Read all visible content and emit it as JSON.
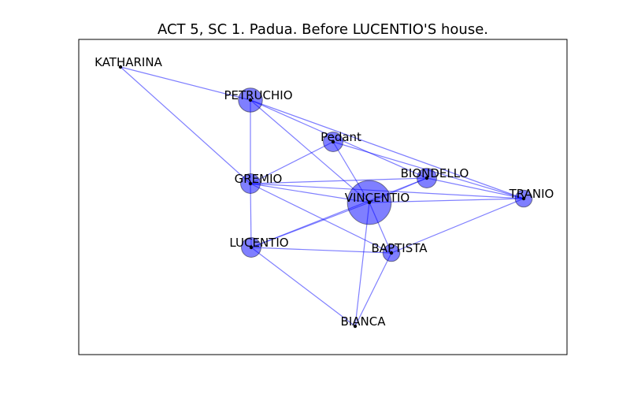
{
  "title": "ACT 5, SC 1. Padua. Before LUCENTIO'S house.",
  "colors": {
    "edge": "#0000ff",
    "node": "#0000ff",
    "frame": "#000000"
  },
  "nodes": [
    {
      "id": "KATHARINA",
      "label": "KATHARINA",
      "weight": 0
    },
    {
      "id": "PETRUCHIO",
      "label": "PETRUCHIO",
      "weight": 3
    },
    {
      "id": "Pedant",
      "label": "Pedant",
      "weight": 2
    },
    {
      "id": "BIONDELLO",
      "label": "BIONDELLO",
      "weight": 2
    },
    {
      "id": "GREMIO",
      "label": "GREMIO",
      "weight": 2
    },
    {
      "id": "VINCENTIO",
      "label": "VINCENTIO",
      "weight": 10
    },
    {
      "id": "TRANIO",
      "label": "TRANIO",
      "weight": 1.5
    },
    {
      "id": "LUCENTIO",
      "label": "LUCENTIO",
      "weight": 2
    },
    {
      "id": "BAPTISTA",
      "label": "BAPTISTA",
      "weight": 1.5
    },
    {
      "id": "BIANCA",
      "label": "BIANCA",
      "weight": 0
    }
  ],
  "edges": [
    [
      "KATHARINA",
      "PETRUCHIO"
    ],
    [
      "KATHARINA",
      "GREMIO"
    ],
    [
      "PETRUCHIO",
      "GREMIO"
    ],
    [
      "PETRUCHIO",
      "VINCENTIO"
    ],
    [
      "PETRUCHIO",
      "BIONDELLO"
    ],
    [
      "PETRUCHIO",
      "TRANIO"
    ],
    [
      "Pedant",
      "GREMIO"
    ],
    [
      "Pedant",
      "VINCENTIO"
    ],
    [
      "Pedant",
      "TRANIO"
    ],
    [
      "GREMIO",
      "BIONDELLO"
    ],
    [
      "GREMIO",
      "VINCENTIO"
    ],
    [
      "GREMIO",
      "LUCENTIO"
    ],
    [
      "GREMIO",
      "BAPTISTA"
    ],
    [
      "GREMIO",
      "TRANIO"
    ],
    [
      "BIONDELLO",
      "VINCENTIO"
    ],
    [
      "BIONDELLO",
      "LUCENTIO"
    ],
    [
      "BIONDELLO",
      "TRANIO"
    ],
    [
      "VINCENTIO",
      "TRANIO"
    ],
    [
      "VINCENTIO",
      "LUCENTIO"
    ],
    [
      "VINCENTIO",
      "BAPTISTA"
    ],
    [
      "VINCENTIO",
      "BIANCA"
    ],
    [
      "LUCENTIO",
      "BAPTISTA"
    ],
    [
      "LUCENTIO",
      "BIANCA"
    ],
    [
      "BAPTISTA",
      "TRANIO"
    ],
    [
      "BAPTISTA",
      "BIANCA"
    ]
  ]
}
